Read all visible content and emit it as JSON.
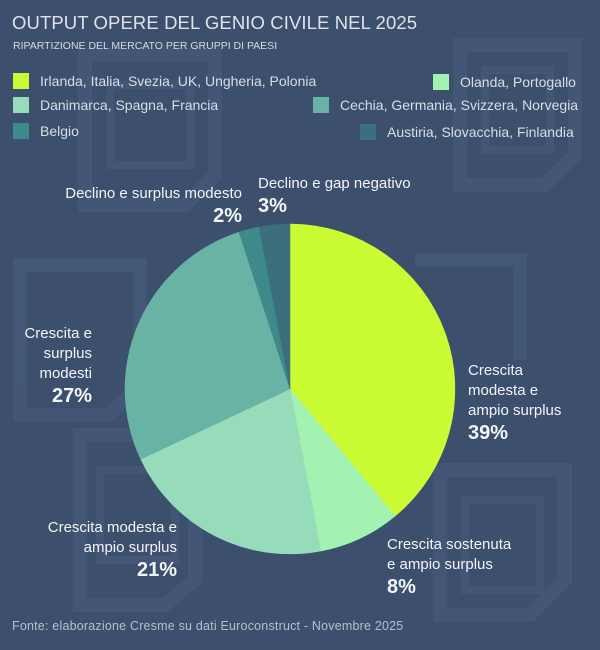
{
  "header": {
    "title": "OUTPUT OPERE DEL GENIO CIVILE NEL 2025",
    "subtitle": "RIPARTIZIONE DEL MERCATO PER GRUPPI DI PAESI"
  },
  "legend": [
    {
      "label": "Irlanda, Italia, Svezia, UK, Ungheria, Polonia",
      "color": "#cbfb32"
    },
    {
      "label": "Olanda, Portogallo",
      "color": "#a3f2b2"
    },
    {
      "label": "Danimarca, Spagna, Francia",
      "color": "#96dbba"
    },
    {
      "label": "Cechia, Germania, Svizzera, Norvegia",
      "color": "#69b3a5"
    },
    {
      "label": "Belgio",
      "color": "#3e8a8a"
    },
    {
      "label": "Austiria, Slovacchia, Finlandia",
      "color": "#3c6e7c"
    }
  ],
  "slice_labels": [
    {
      "name": "Crescita modesta e ampio surplus",
      "lines": [
        "Crescita",
        "modesta e",
        "ampio surplus"
      ],
      "pct": "39%"
    },
    {
      "name": "Crescita sostenuta e ampio surplus",
      "lines": [
        "Crescita sostenuta",
        "e ampio surplus"
      ],
      "pct": "8%"
    },
    {
      "name": "Crescita modesta e ampio surplus",
      "lines": [
        "Crescita modesta e",
        "ampio surplus"
      ],
      "pct": "21%"
    },
    {
      "name": "Crescita e surplus modesti",
      "lines": [
        "Crescita e",
        "surplus",
        "modesti"
      ],
      "pct": "27%"
    },
    {
      "name": "Declino e surplus modesto",
      "lines": [
        "Declino e surplus modesto"
      ],
      "pct": "2%"
    },
    {
      "name": "Declino e gap negativo",
      "lines": [
        "Declino e gap negativo"
      ],
      "pct": "3%"
    }
  ],
  "footer": {
    "source": "Fonte: elaborazione Cresme su dati Euroconstruct - Novembre 2025"
  },
  "chart_data": {
    "type": "pie",
    "title": "OUTPUT OPERE DEL GENIO CIVILE NEL 2025",
    "subtitle": "RIPARTIZIONE DEL MERCATO PER GRUPPI DI PAESI",
    "categories": [
      "Irlanda, Italia, Svezia, UK, Ungheria, Polonia",
      "Olanda, Portogallo",
      "Danimarca, Spagna, Francia",
      "Cechia, Germania, Svizzera, Norvegia",
      "Belgio",
      "Austiria, Slovacchia, Finlandia"
    ],
    "slice_names": [
      "Crescita modesta e ampio surplus",
      "Crescita sostenuta e ampio surplus",
      "Crescita modesta e ampio surplus",
      "Crescita e surplus modesti",
      "Declino e surplus modesto",
      "Declino e gap negativo"
    ],
    "values": [
      39,
      8,
      21,
      27,
      2,
      3
    ],
    "unit": "%",
    "colors": [
      "#cbfb32",
      "#a3f2b2",
      "#96dbba",
      "#69b3a5",
      "#3e8a8a",
      "#3c6e7c"
    ],
    "start_angle": "12 o'clock",
    "direction": "clockwise",
    "legend_position": "top"
  }
}
